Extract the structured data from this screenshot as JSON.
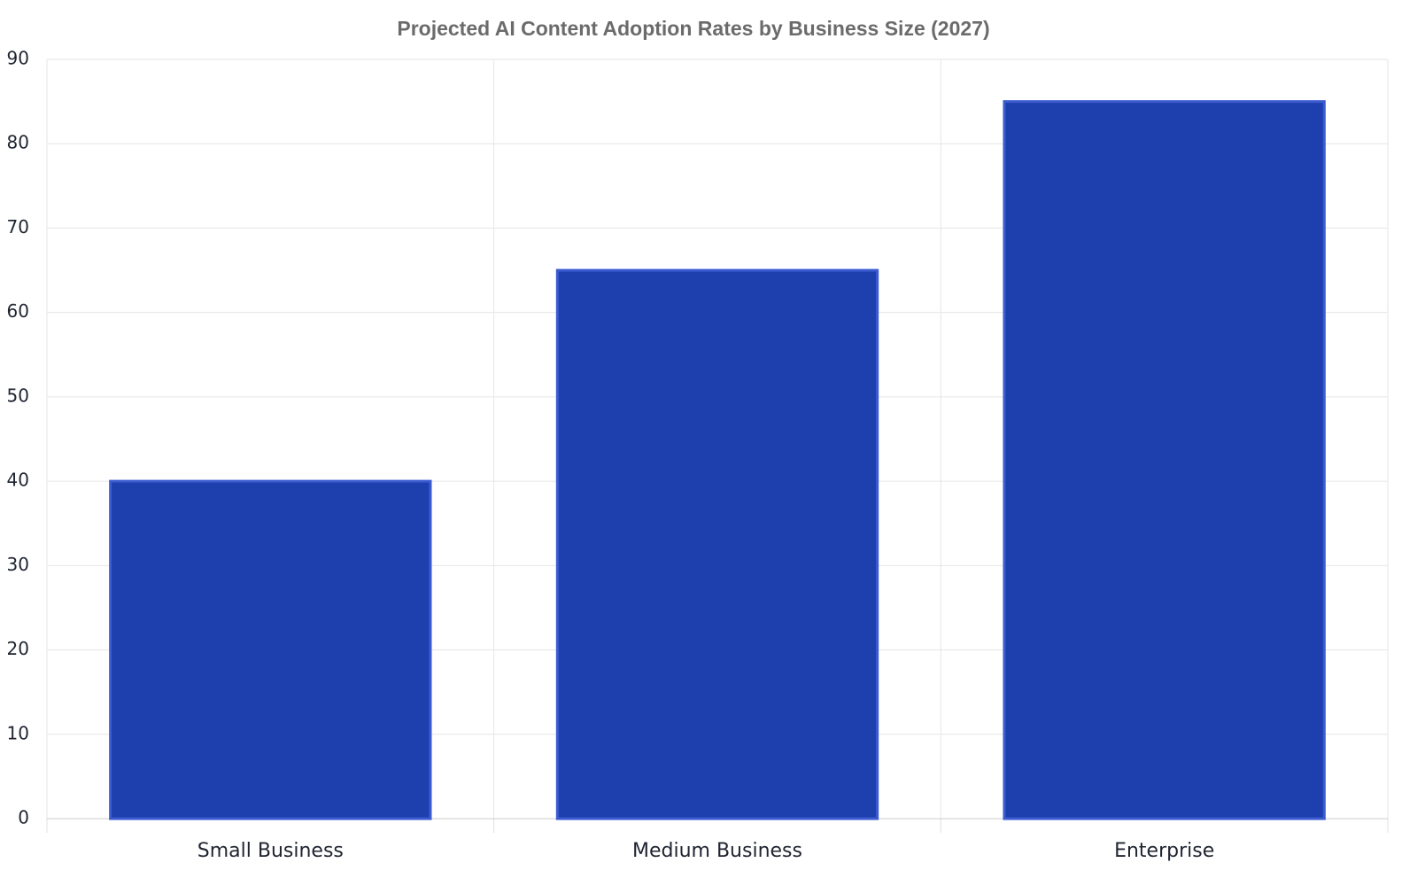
{
  "chart_data": {
    "type": "bar",
    "title": "Projected AI Content Adoption Rates by Business Size (2027)",
    "categories": [
      "Small Business",
      "Medium Business",
      "Enterprise"
    ],
    "values": [
      40,
      65,
      85
    ],
    "color": "#1e40af",
    "ylim": [
      0,
      90
    ],
    "yticks": [
      0,
      10,
      20,
      30,
      40,
      50,
      60,
      70,
      80,
      90
    ],
    "grid": true
  }
}
